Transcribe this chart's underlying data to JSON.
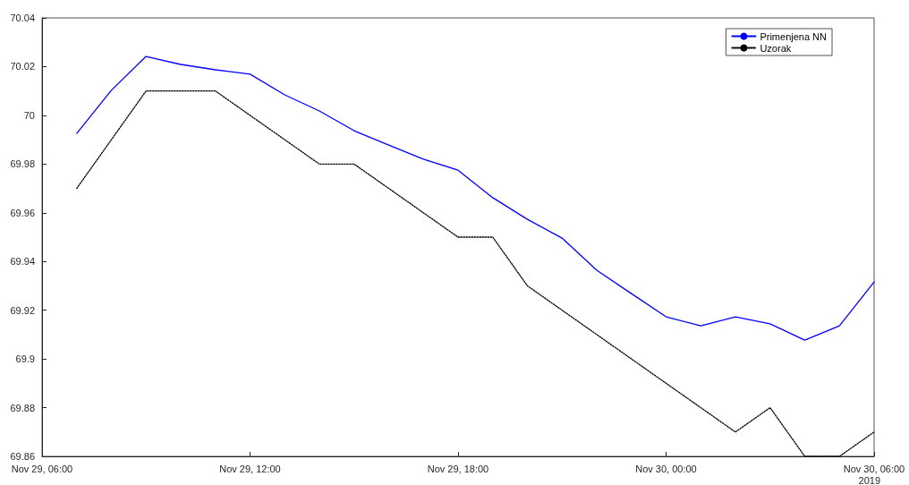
{
  "chart_data": {
    "type": "line",
    "x": [
      "2019-11-29T07:00",
      "2019-11-29T08:00",
      "2019-11-29T09:00",
      "2019-11-29T10:00",
      "2019-11-29T11:00",
      "2019-11-29T12:00",
      "2019-11-29T13:00",
      "2019-11-29T14:00",
      "2019-11-29T15:00",
      "2019-11-29T16:00",
      "2019-11-29T17:00",
      "2019-11-29T18:00",
      "2019-11-29T19:00",
      "2019-11-29T20:00",
      "2019-11-29T21:00",
      "2019-11-29T22:00",
      "2019-11-29T23:00",
      "2019-11-30T00:00",
      "2019-11-30T01:00",
      "2019-11-30T02:00",
      "2019-11-30T03:00",
      "2019-11-30T04:00",
      "2019-11-30T05:00",
      "2019-11-30T06:00"
    ],
    "series": [
      {
        "name": "Primenjena NN",
        "color": "#0000ff",
        "line_style": "solid",
        "values": [
          69.9926,
          70.0103,
          70.0242,
          70.0209,
          70.0187,
          70.0169,
          70.0084,
          70.0018,
          69.9937,
          69.9878,
          69.982,
          69.9775,
          69.9662,
          69.9573,
          69.9496,
          69.9364,
          69.9268,
          69.9173,
          69.9136,
          69.9173,
          69.9144,
          69.9077,
          69.9136,
          69.9316
        ]
      },
      {
        "name": "Uzorak",
        "color": "#000000",
        "line_style": "dotted",
        "values": [
          69.97,
          69.99,
          70.01,
          70.01,
          70.01,
          70.0,
          69.99,
          69.98,
          69.98,
          69.97,
          69.96,
          69.95,
          69.95,
          69.93,
          69.92,
          69.91,
          69.9,
          69.89,
          69.88,
          69.87,
          69.88,
          69.86,
          69.86,
          69.87
        ]
      }
    ],
    "xlim": [
      "2019-11-29T06:00",
      "2019-11-30T06:00"
    ],
    "xticks": [
      {
        "value": "2019-11-29T06:00",
        "label": "Nov 29, 06:00"
      },
      {
        "value": "2019-11-29T12:00",
        "label": "Nov 29, 12:00"
      },
      {
        "value": "2019-11-29T18:00",
        "label": "Nov 29, 18:00"
      },
      {
        "value": "2019-11-30T00:00",
        "label": "Nov 30, 00:00"
      },
      {
        "value": "2019-11-30T06:00",
        "label": "Nov 30, 06:00"
      }
    ],
    "ylim": [
      69.86,
      70.04
    ],
    "yticks": [
      69.86,
      69.88,
      69.9,
      69.92,
      69.94,
      69.96,
      69.98,
      70,
      70.02,
      70.04
    ],
    "annotations": [
      "2019"
    ],
    "grid": false,
    "legend": "top right",
    "marker": "none"
  }
}
